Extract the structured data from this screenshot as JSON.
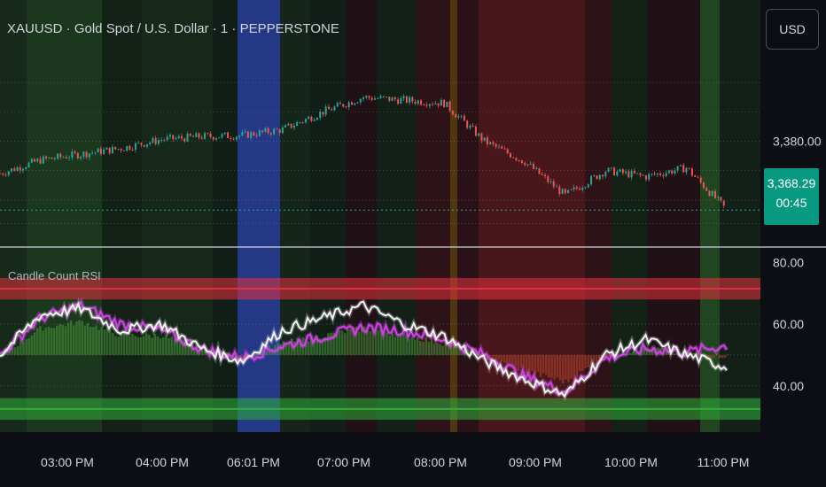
{
  "header": {
    "title": "XAUUSD · Gold Spot / U.S. Dollar · 1 · PEPPERSTONE",
    "currency_button": "USD"
  },
  "price_tag": {
    "price": "3,368.29",
    "countdown": "00:45"
  },
  "indicator": {
    "name": "Candle Count RSI"
  },
  "colors": {
    "background": "#0c0e13",
    "bull_candle": "#26a69a",
    "bear_candle": "#ef5350",
    "rsi_line": "#f2f2f2",
    "rsi_ma_line": "#cc44e0",
    "overbought_band": "#e5323f",
    "oversold_band": "#33b03c",
    "last_price_tag": "#089981",
    "session_blue": "#2a3f9a",
    "session_green": "#2e6b2a",
    "session_red": "#7a1f22",
    "session_orange": "#8a5a10"
  },
  "chart_data": [
    {
      "type": "candlestick",
      "title": "XAUUSD · Gold Spot / U.S. Dollar · 1 · PEPPERSTONE",
      "x": [
        "02:30 PM",
        "03:00 PM",
        "03:30 PM",
        "04:00 PM",
        "04:30 PM",
        "05:00 PM",
        "05:30 PM",
        "06:01 PM",
        "06:30 PM",
        "07:00 PM",
        "07:30 PM",
        "08:00 PM",
        "08:30 PM",
        "09:00 PM",
        "09:30 PM",
        "10:00 PM",
        "10:30 PM",
        "11:00 PM",
        "11:10 PM"
      ],
      "close": [
        3374.5,
        3376.8,
        3377.8,
        3378.8,
        3380.3,
        3380.8,
        3381.0,
        3382.0,
        3385.0,
        3387.5,
        3387.0,
        3386.5,
        3380.0,
        3376.5,
        3370.8,
        3375.0,
        3374.0,
        3375.5,
        3368.29
      ],
      "last_price": 3368.29,
      "y_tick_labels": [
        "3,380.00"
      ],
      "ylim": [
        3362,
        3395
      ],
      "x_tick_labels": [
        "03:00 PM",
        "04:00 PM",
        "06:01 PM",
        "07:00 PM",
        "08:00 PM",
        "09:00 PM",
        "10:00 PM",
        "11:00 PM"
      ]
    },
    {
      "type": "line",
      "title": "Candle Count RSI",
      "x": [
        "02:30 PM",
        "03:00 PM",
        "03:30 PM",
        "04:00 PM",
        "04:30 PM",
        "05:00 PM",
        "05:30 PM",
        "06:01 PM",
        "06:30 PM",
        "07:00 PM",
        "07:30 PM",
        "08:00 PM",
        "08:30 PM",
        "09:00 PM",
        "09:30 PM",
        "10:00 PM",
        "10:30 PM",
        "11:00 PM",
        "11:10 PM"
      ],
      "series": [
        {
          "values": [
            50,
            63,
            65,
            58,
            60,
            52,
            48,
            58,
            62,
            66,
            60,
            56,
            48,
            42,
            37,
            50,
            55,
            50,
            46
          ]
        },
        {
          "values": [
            50,
            62,
            66,
            60,
            58,
            52,
            49,
            53,
            56,
            59,
            58,
            55,
            50,
            43,
            38,
            49,
            52,
            51,
            53
          ]
        }
      ],
      "bands": [
        {
          "from": 68,
          "to": 75,
          "color": "overbought"
        },
        {
          "from": 29,
          "to": 36,
          "color": "oversold"
        }
      ],
      "y_tick_labels": [
        "80.00",
        "60.00",
        "40.00"
      ],
      "ylim": [
        25,
        83
      ]
    }
  ]
}
